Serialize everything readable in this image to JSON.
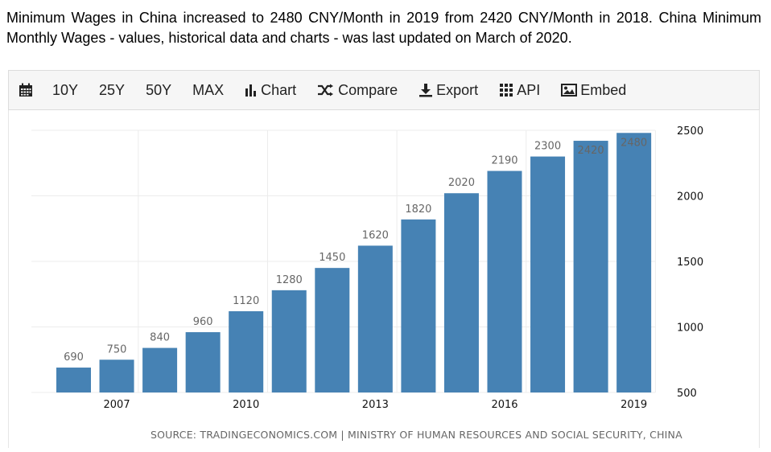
{
  "summary": "Minimum Wages in China increased to 2480 CNY/Month in 2019 from 2420 CNY/Month in 2018. China Minimum Monthly Wages - values, historical data and charts - was last updated on March of 2020.",
  "toolbar": {
    "items": [
      {
        "label": "",
        "icon": "calendar-icon"
      },
      {
        "label": "10Y"
      },
      {
        "label": "25Y"
      },
      {
        "label": "50Y"
      },
      {
        "label": "MAX"
      },
      {
        "label": "Chart",
        "icon": "bar-chart-icon"
      },
      {
        "label": "Compare",
        "icon": "shuffle-icon"
      },
      {
        "label": "Export",
        "icon": "download-icon"
      },
      {
        "label": "API",
        "icon": "grid-icon"
      },
      {
        "label": "Embed",
        "icon": "image-icon"
      }
    ]
  },
  "chart_data": {
    "type": "bar",
    "categories": [
      "2006",
      "2007",
      "2008",
      "2009",
      "2010",
      "2011",
      "2012",
      "2013",
      "2014",
      "2015",
      "2016",
      "2017",
      "2018",
      "2019"
    ],
    "values": [
      690,
      750,
      840,
      960,
      1120,
      1280,
      1450,
      1620,
      1820,
      2020,
      2190,
      2300,
      2420,
      2480
    ],
    "x_tick_labels": [
      "2007",
      "2010",
      "2013",
      "2016",
      "2019"
    ],
    "y_tick_labels": [
      "500",
      "1000",
      "1500",
      "2000",
      "2500"
    ],
    "ylim": [
      500,
      2500
    ],
    "y_axis_position": "right",
    "grid": true,
    "bar_color": "#4682b4",
    "source": "SOURCE: TRADINGECONOMICS.COM | MINISTRY OF HUMAN RESOURCES AND SOCIAL SECURITY, CHINA"
  }
}
